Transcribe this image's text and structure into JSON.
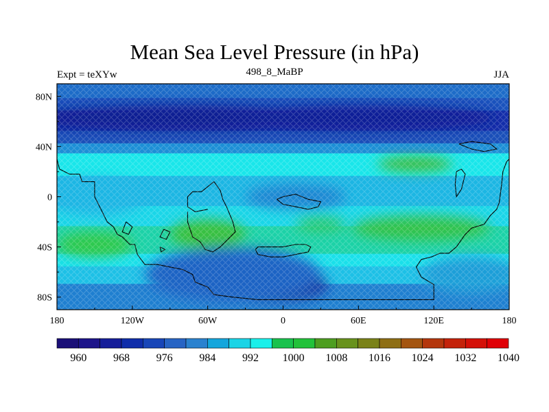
{
  "map": {
    "title": "Mean Sea Level Pressure (in hPa)",
    "left_string": "Expt = teXYw",
    "center_string": "498_8_MaBP",
    "right_string": "JJA",
    "lon_range": [
      -180,
      180
    ],
    "lat_range": [
      -90,
      90
    ],
    "x_ticks": [
      {
        "value": -180,
        "label": "180"
      },
      {
        "value": -120,
        "label": "120W"
      },
      {
        "value": -60,
        "label": "60W"
      },
      {
        "value": 0,
        "label": "0"
      },
      {
        "value": 60,
        "label": "60E"
      },
      {
        "value": 120,
        "label": "120E"
      },
      {
        "value": 180,
        "label": "180"
      }
    ],
    "y_ticks": [
      {
        "value": 80,
        "label": "80N"
      },
      {
        "value": 40,
        "label": "40N"
      },
      {
        "value": 0,
        "label": "0"
      },
      {
        "value": -40,
        "label": "40S"
      },
      {
        "value": -80,
        "label": "80S"
      }
    ]
  },
  "colorbar": {
    "colors": [
      "#1a0f78",
      "#1d148a",
      "#161e9a",
      "#0f2daa",
      "#1846b8",
      "#2764c4",
      "#2a82cf",
      "#14a6dc",
      "#1ad4e6",
      "#1bf0ea",
      "#19c24d",
      "#22c23a",
      "#4d9e20",
      "#68921c",
      "#7a8218",
      "#8e6e14",
      "#a45510",
      "#b4360c",
      "#c4220a",
      "#d41008",
      "#e00006"
    ],
    "labels": [
      {
        "after_index": 1,
        "text": "960"
      },
      {
        "after_index": 3,
        "text": "968"
      },
      {
        "after_index": 5,
        "text": "976"
      },
      {
        "after_index": 7,
        "text": "984"
      },
      {
        "after_index": 9,
        "text": "992"
      },
      {
        "after_index": 11,
        "text": "1000"
      },
      {
        "after_index": 13,
        "text": "1008"
      },
      {
        "after_index": 15,
        "text": "1016"
      },
      {
        "after_index": 17,
        "text": "1024"
      },
      {
        "after_index": 19,
        "text": "1032"
      },
      {
        "after_index": 21,
        "text": "1040"
      }
    ]
  },
  "field_bands": [
    {
      "lat_from": 90,
      "lat_to": 78,
      "color": "#1d6cc8"
    },
    {
      "lat_from": 78,
      "lat_to": 68,
      "color": "#1a53bd"
    },
    {
      "lat_from": 68,
      "lat_to": 52,
      "color": "#142faa"
    },
    {
      "lat_from": 52,
      "lat_to": 42,
      "color": "#1a4fb9"
    },
    {
      "lat_from": 42,
      "lat_to": 34,
      "color": "#1c8fd6"
    },
    {
      "lat_from": 34,
      "lat_to": 16,
      "color": "#19e6ea"
    },
    {
      "lat_from": 16,
      "lat_to": -8,
      "color": "#1cb6e3"
    },
    {
      "lat_from": -8,
      "lat_to": -24,
      "color": "#1ad6e8"
    },
    {
      "lat_from": -24,
      "lat_to": -46,
      "color": "#1cd2a8"
    },
    {
      "lat_from": -46,
      "lat_to": -56,
      "color": "#1ae0ea"
    },
    {
      "lat_from": -56,
      "lat_to": -70,
      "color": "#1dc0e6"
    },
    {
      "lat_from": -70,
      "lat_to": -90,
      "color": "#1f7fd0"
    }
  ],
  "field_blobs": [
    {
      "lon": -80,
      "lat": 63,
      "rlon": 120,
      "rlat": 10,
      "color": "#0d1c92"
    },
    {
      "lon": 60,
      "lat": 63,
      "rlon": 110,
      "rlat": 10,
      "color": "#111f96"
    },
    {
      "lon": -150,
      "lat": -38,
      "rlon": 30,
      "rlat": 10,
      "color": "#2fc94e"
    },
    {
      "lon": -60,
      "lat": -30,
      "rlon": 30,
      "rlat": 12,
      "color": "#39c03f"
    },
    {
      "lon": 110,
      "lat": -25,
      "rlon": 55,
      "rlat": 10,
      "color": "#33c24c"
    },
    {
      "lon": 105,
      "lat": 26,
      "rlon": 30,
      "rlat": 6,
      "color": "#3fba3a"
    },
    {
      "lon": 30,
      "lat": -22,
      "rlon": 20,
      "rlat": 6,
      "color": "#2cc86a"
    },
    {
      "lon": 10,
      "lat": 0,
      "rlon": 40,
      "rlat": 10,
      "color": "#1a86d2"
    },
    {
      "lon": -20,
      "lat": -70,
      "rlon": 55,
      "rlat": 14,
      "color": "#141e94"
    },
    {
      "lon": -40,
      "lat": -62,
      "rlon": 70,
      "rlat": 22,
      "color": "#1f63c4"
    },
    {
      "lon": 150,
      "lat": -62,
      "rlon": 40,
      "rlat": 15,
      "color": "#1a9ed8"
    },
    {
      "lon": -150,
      "lat": 0,
      "rlon": 40,
      "rlat": 15,
      "color": "#1ab6e4"
    }
  ],
  "coastlines": [
    [
      [
        -180,
        30
      ],
      [
        -178,
        22
      ],
      [
        -170,
        18
      ],
      [
        -162,
        18
      ],
      [
        -160,
        12
      ],
      [
        -150,
        12
      ],
      [
        -150,
        0
      ],
      [
        -145,
        -10
      ],
      [
        -140,
        -20
      ],
      [
        -135,
        -24
      ],
      [
        -132,
        -30
      ],
      [
        -128,
        -32
      ],
      [
        -122,
        -38
      ],
      [
        -118,
        -38
      ],
      [
        -116,
        -46
      ],
      [
        -110,
        -54
      ],
      [
        -100,
        -54
      ],
      [
        -90,
        -56
      ],
      [
        -80,
        -58
      ],
      [
        -72,
        -62
      ],
      [
        -70,
        -68
      ],
      [
        -60,
        -72
      ],
      [
        -55,
        -78
      ],
      [
        -40,
        -80
      ],
      [
        -20,
        -82
      ],
      [
        0,
        -82
      ],
      [
        20,
        -82
      ],
      [
        60,
        -82
      ],
      [
        100,
        -82
      ],
      [
        120,
        -82
      ],
      [
        120,
        -70
      ],
      [
        110,
        -64
      ],
      [
        106,
        -56
      ],
      [
        110,
        -50
      ],
      [
        118,
        -48
      ],
      [
        125,
        -45
      ],
      [
        132,
        -45
      ],
      [
        138,
        -40
      ],
      [
        145,
        -30
      ],
      [
        150,
        -25
      ],
      [
        160,
        -22
      ],
      [
        165,
        -15
      ],
      [
        170,
        -10
      ],
      [
        172,
        -5
      ],
      [
        174,
        10
      ],
      [
        175,
        20
      ],
      [
        178,
        28
      ],
      [
        180,
        30
      ]
    ],
    [
      [
        -60,
        -10
      ],
      [
        -70,
        -12
      ],
      [
        -76,
        -8
      ],
      [
        -76,
        0
      ],
      [
        -72,
        4
      ],
      [
        -65,
        4
      ],
      [
        -60,
        8
      ],
      [
        -55,
        12
      ],
      [
        -50,
        5
      ],
      [
        -48,
        -2
      ],
      [
        -45,
        -8
      ],
      [
        -40,
        -20
      ],
      [
        -38,
        -28
      ],
      [
        -42,
        -32
      ],
      [
        -50,
        -40
      ],
      [
        -56,
        -44
      ],
      [
        -62,
        -42
      ],
      [
        -66,
        -36
      ],
      [
        -72,
        -32
      ],
      [
        -76,
        -20
      ],
      [
        -76,
        -12
      ]
    ],
    [
      [
        -22,
        -42
      ],
      [
        -20,
        -46
      ],
      [
        -10,
        -48
      ],
      [
        0,
        -48
      ],
      [
        10,
        -46
      ],
      [
        20,
        -44
      ],
      [
        22,
        -40
      ],
      [
        18,
        -38
      ],
      [
        10,
        -38
      ],
      [
        0,
        -40
      ],
      [
        -10,
        -40
      ],
      [
        -20,
        -40
      ],
      [
        -22,
        -42
      ]
    ],
    [
      [
        -5,
        -2
      ],
      [
        0,
        0
      ],
      [
        10,
        2
      ],
      [
        20,
        -2
      ],
      [
        30,
        -4
      ],
      [
        28,
        -8
      ],
      [
        20,
        -10
      ],
      [
        10,
        -8
      ],
      [
        0,
        -6
      ],
      [
        -5,
        -2
      ]
    ],
    [
      [
        140,
        42
      ],
      [
        150,
        44
      ],
      [
        165,
        42
      ],
      [
        170,
        38
      ],
      [
        160,
        36
      ],
      [
        150,
        38
      ],
      [
        140,
        42
      ]
    ],
    [
      [
        138,
        20
      ],
      [
        142,
        22
      ],
      [
        145,
        18
      ],
      [
        142,
        6
      ],
      [
        138,
        0
      ],
      [
        137,
        10
      ],
      [
        138,
        20
      ]
    ],
    [
      [
        -125,
        -20
      ],
      [
        -128,
        -28
      ],
      [
        -123,
        -30
      ],
      [
        -120,
        -24
      ],
      [
        -125,
        -20
      ]
    ],
    [
      [
        -95,
        -26
      ],
      [
        -98,
        -32
      ],
      [
        -93,
        -34
      ],
      [
        -90,
        -28
      ],
      [
        -95,
        -26
      ]
    ],
    [
      [
        -98,
        -40
      ],
      [
        -97,
        -44
      ],
      [
        -94,
        -42
      ],
      [
        -98,
        -40
      ]
    ]
  ]
}
